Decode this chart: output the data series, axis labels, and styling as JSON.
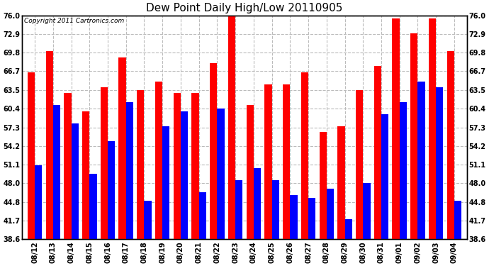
{
  "title": "Dew Point Daily High/Low 20110905",
  "copyright": "Copyright 2011 Cartronics.com",
  "labels": [
    "08/12",
    "08/13",
    "08/14",
    "08/15",
    "08/16",
    "08/17",
    "08/18",
    "08/19",
    "08/20",
    "08/21",
    "08/22",
    "08/23",
    "08/24",
    "08/25",
    "08/26",
    "08/27",
    "08/28",
    "08/29",
    "08/30",
    "08/31",
    "09/01",
    "09/02",
    "09/03",
    "09/04"
  ],
  "highs": [
    66.5,
    70.0,
    63.0,
    60.0,
    64.0,
    69.0,
    63.5,
    65.0,
    63.0,
    63.0,
    68.0,
    76.0,
    61.0,
    64.5,
    64.5,
    66.5,
    56.5,
    57.5,
    63.5,
    67.5,
    75.5,
    73.0,
    75.5,
    70.0
  ],
  "lows": [
    51.0,
    61.0,
    58.0,
    49.5,
    55.0,
    61.5,
    45.0,
    57.5,
    60.0,
    46.5,
    60.5,
    48.5,
    50.5,
    48.5,
    46.0,
    45.5,
    47.0,
    42.0,
    48.0,
    59.5,
    61.5,
    65.0,
    64.0,
    45.0
  ],
  "high_color": "#ff0000",
  "low_color": "#0000ff",
  "bg_color": "#ffffff",
  "plot_bg_color": "#ffffff",
  "grid_color": "#bbbbbb",
  "yticks": [
    38.6,
    41.7,
    44.8,
    48.0,
    51.1,
    54.2,
    57.3,
    60.4,
    63.5,
    66.7,
    69.8,
    72.9,
    76.0
  ],
  "ymin": 38.6,
  "ymax": 76.0,
  "title_fontsize": 11,
  "copyright_fontsize": 6.5,
  "tick_fontsize": 7,
  "bar_width": 0.4
}
